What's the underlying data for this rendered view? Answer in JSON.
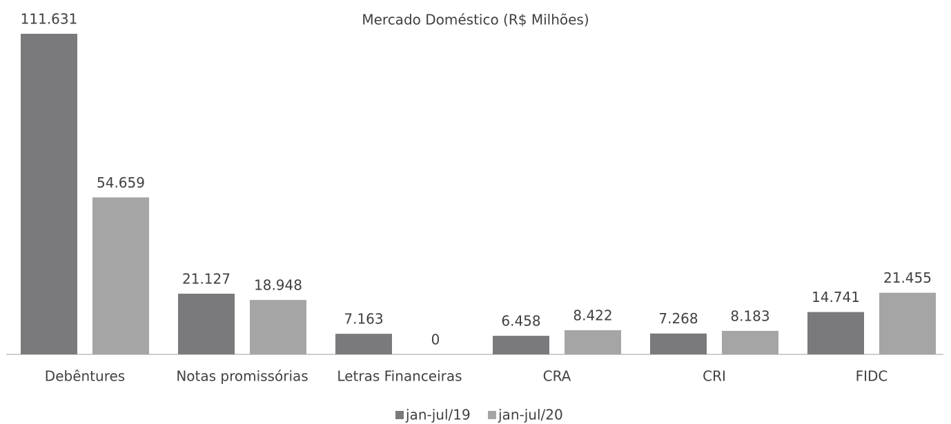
{
  "chart_data": {
    "type": "bar",
    "title": "Mercado Doméstico (R$ Milhões)",
    "categories": [
      "Debêntures",
      "Notas promissórias",
      "Letras Financeiras",
      "CRA",
      "CRI",
      "FIDC"
    ],
    "series": [
      {
        "name": "jan-jul/19",
        "color": "#7a7a7c",
        "values": [
          111631,
          21127,
          7163,
          6458,
          7268,
          14741
        ],
        "value_labels": [
          "111.631",
          "21.127",
          "7.163",
          "6.458",
          "7.268",
          "14.741"
        ]
      },
      {
        "name": "jan-jul/20",
        "color": "#a5a5a5",
        "values": [
          54659,
          18948,
          0,
          8422,
          8183,
          21455
        ],
        "value_labels": [
          "54.659",
          "18.948",
          "0",
          "8.422",
          "8.183",
          "21.455"
        ]
      }
    ],
    "legend": "bottom"
  }
}
